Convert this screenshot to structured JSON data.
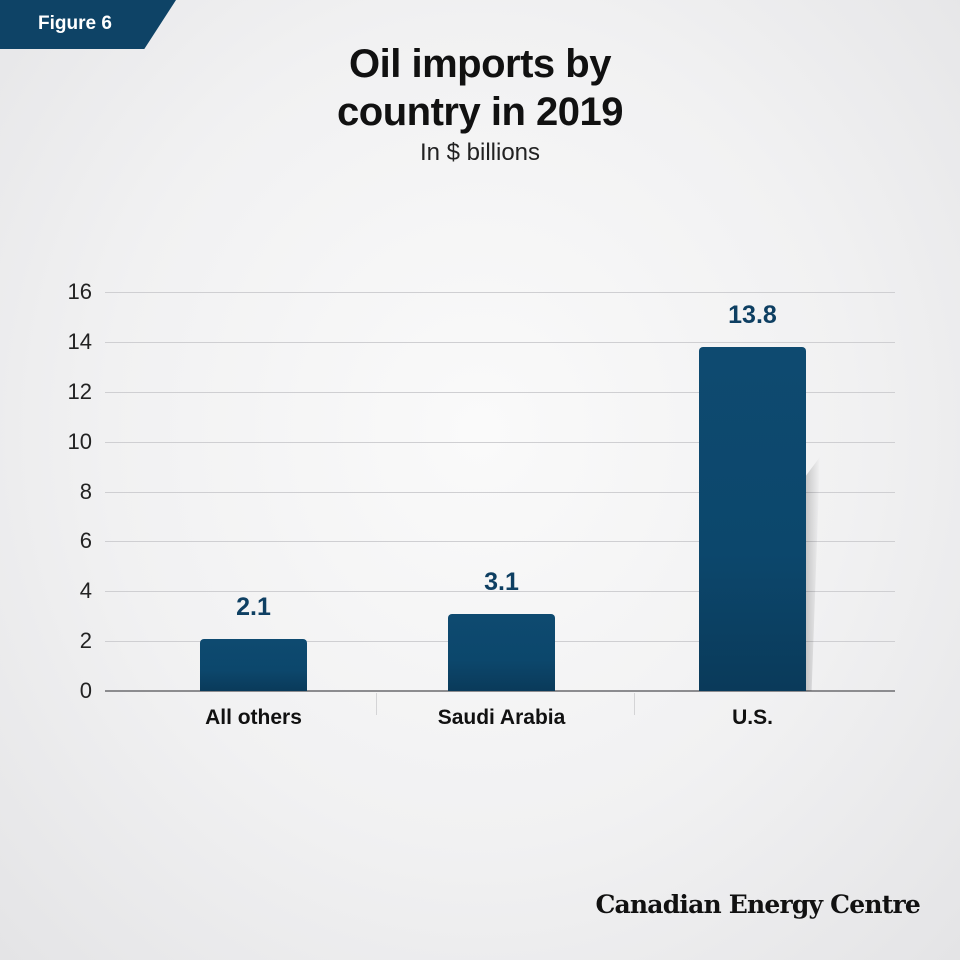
{
  "figure_tag": "Figure 6",
  "title_line1": "Oil imports by",
  "title_line2": "country in 2019",
  "subtitle": "In $ billions",
  "brand": "Canadian Energy Centre",
  "colors": {
    "bar": "#0e4a70",
    "tag": "#0e4366",
    "value_label": "#0e3f62"
  },
  "y_ticks": [
    "0",
    "2",
    "4",
    "6",
    "8",
    "10",
    "12",
    "14",
    "16"
  ],
  "bars": [
    {
      "label": "All others",
      "value": "2.1"
    },
    {
      "label": "Saudi Arabia",
      "value": "3.1"
    },
    {
      "label": "U.S.",
      "value": "13.8"
    }
  ],
  "chart_data": {
    "type": "bar",
    "title": "Oil imports by country in 2019",
    "subtitle": "In $ billions",
    "categories": [
      "All others",
      "Saudi Arabia",
      "U.S."
    ],
    "values": [
      2.1,
      3.1,
      13.8
    ],
    "xlabel": "",
    "ylabel": "",
    "ylim": [
      0,
      16
    ],
    "yticks": [
      0,
      2,
      4,
      6,
      8,
      10,
      12,
      14,
      16
    ],
    "grid": true,
    "data_labels": true,
    "legend": null
  }
}
